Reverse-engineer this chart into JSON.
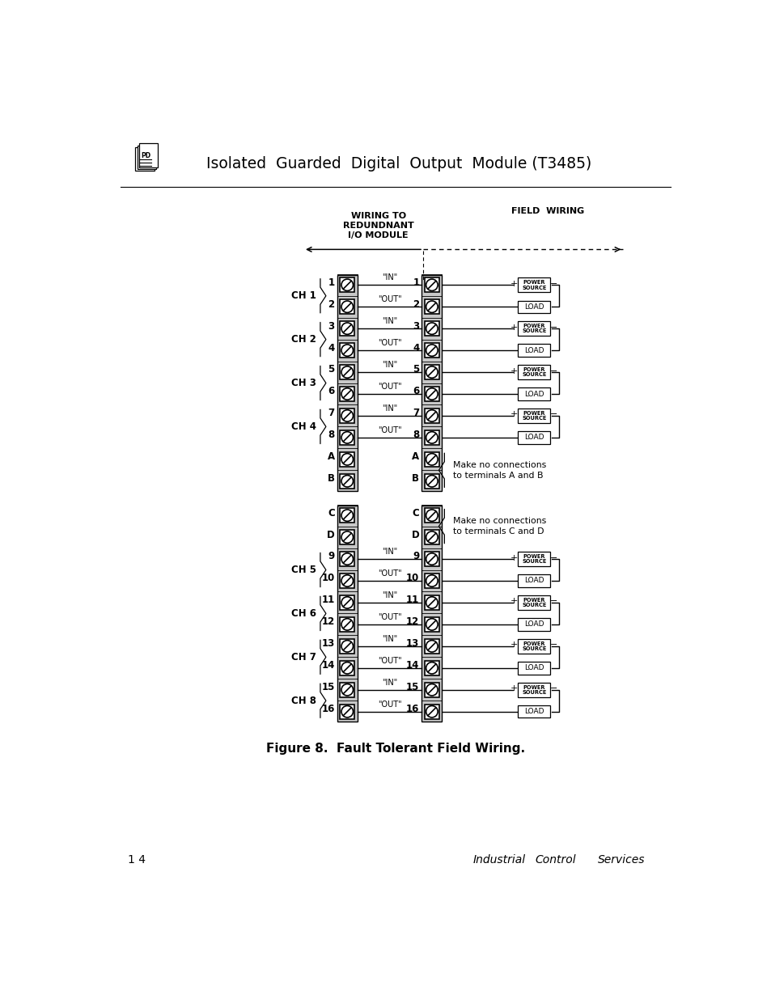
{
  "title": "Isolated  Guarded  Digital  Output  Module (T3485)",
  "figure_caption": "Figure 8.  Fault Tolerant Field Wiring.",
  "page_number": "1 4",
  "footer_text_1": "Industrial",
  "footer_text_2": "Control",
  "footer_text_3": "Services",
  "bg_color": "#ffffff"
}
